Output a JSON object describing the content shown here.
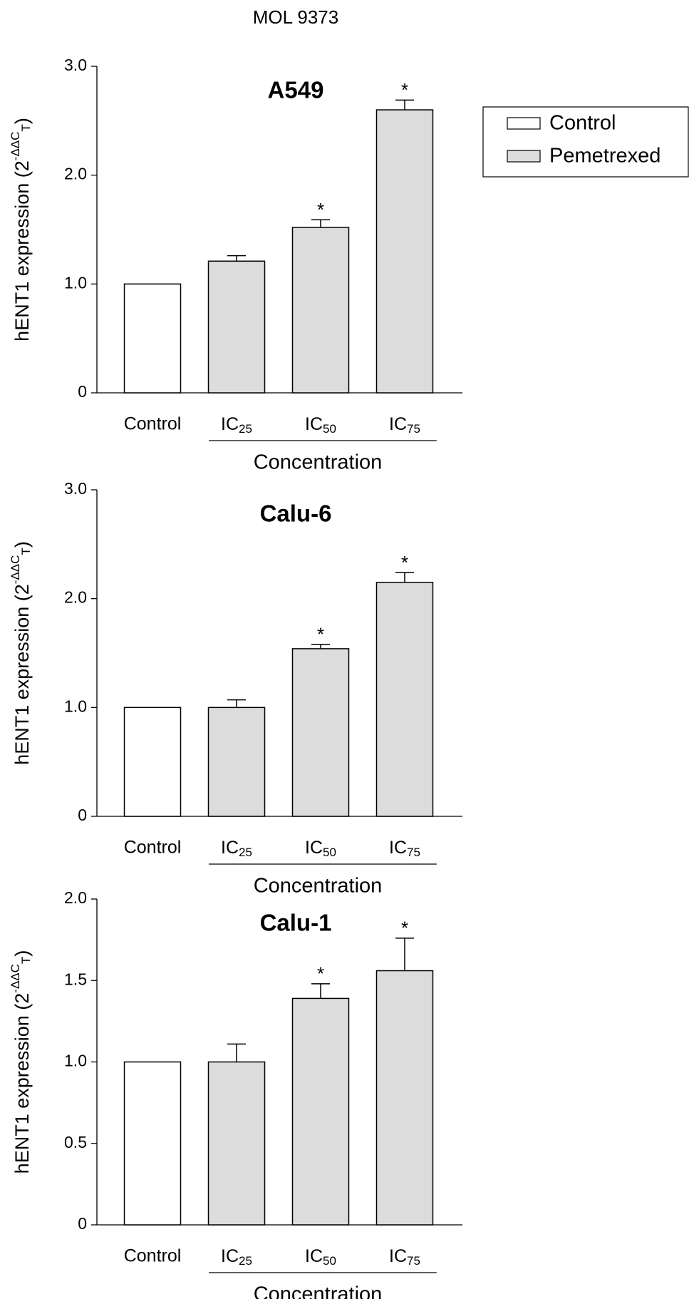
{
  "page_title": "MOL 9373",
  "legend": {
    "entries": [
      {
        "label": "Control",
        "color": "#ffffff"
      },
      {
        "label": "Pemetrexed",
        "color": "#dcdcdc"
      }
    ]
  },
  "chart_data": [
    {
      "type": "bar",
      "title": "A549",
      "ylabel": "hENT1 expression (2-ΔΔCT)",
      "xlabel": "Concentration",
      "categories": [
        "Control",
        "IC25",
        "IC50",
        "IC75"
      ],
      "values": [
        1.0,
        1.21,
        1.52,
        2.6
      ],
      "errors": [
        null,
        0.05,
        0.07,
        0.09
      ],
      "colors": [
        "#ffffff",
        "#dcdcdc",
        "#dcdcdc",
        "#dcdcdc"
      ],
      "annotations": [
        {
          "category": "IC50",
          "text": "*"
        },
        {
          "category": "IC75",
          "text": "*"
        }
      ],
      "ylim": [
        0,
        3
      ],
      "yticks": [
        0,
        {
          "value": 1,
          "label": "1.0"
        },
        {
          "value": 2,
          "label": "2.0"
        },
        {
          "value": 3,
          "label": "3.0"
        }
      ]
    },
    {
      "type": "bar",
      "title": "Calu-6",
      "ylabel": "hENT1 expression (2-ΔΔCT)",
      "xlabel": "Concentration",
      "categories": [
        "Control",
        "IC25",
        "IC50",
        "IC75"
      ],
      "values": [
        1.0,
        1.0,
        1.54,
        2.15
      ],
      "errors": [
        null,
        0.07,
        0.04,
        0.09
      ],
      "colors": [
        "#ffffff",
        "#dcdcdc",
        "#dcdcdc",
        "#dcdcdc"
      ],
      "annotations": [
        {
          "category": "IC50",
          "text": "*"
        },
        {
          "category": "IC75",
          "text": "*"
        }
      ],
      "ylim": [
        0,
        3
      ],
      "yticks": [
        0,
        {
          "value": 1,
          "label": "1.0"
        },
        {
          "value": 2,
          "label": "2.0"
        },
        {
          "value": 3,
          "label": "3.0"
        }
      ]
    },
    {
      "type": "bar",
      "title": "Calu-1",
      "ylabel": "hENT1 expression (2-ΔΔCT)",
      "xlabel": "Concentration",
      "categories": [
        "Control",
        "IC25",
        "IC50",
        "IC75"
      ],
      "values": [
        1.0,
        1.0,
        1.39,
        1.56
      ],
      "errors": [
        null,
        0.11,
        0.09,
        0.2
      ],
      "colors": [
        "#ffffff",
        "#dcdcdc",
        "#dcdcdc",
        "#dcdcdc"
      ],
      "annotations": [
        {
          "category": "IC50",
          "text": "*"
        },
        {
          "category": "IC75",
          "text": "*"
        }
      ],
      "ylim": [
        0,
        2
      ],
      "yticks": [
        0,
        0.5,
        {
          "value": 1,
          "label": "1.0"
        },
        1.5,
        {
          "value": 2,
          "label": "2.0"
        }
      ]
    }
  ]
}
